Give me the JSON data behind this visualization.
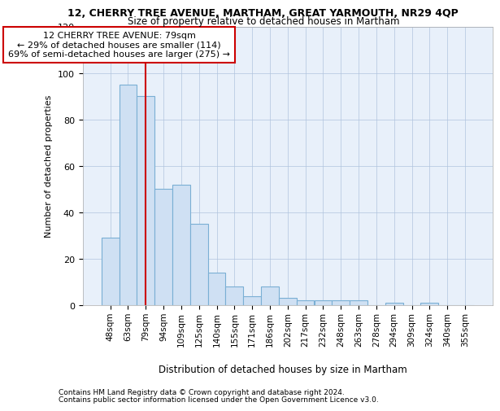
{
  "title": "12, CHERRY TREE AVENUE, MARTHAM, GREAT YARMOUTH, NR29 4QP",
  "subtitle": "Size of property relative to detached houses in Martham",
  "xlabel_bottom": "Distribution of detached houses by size in Martham",
  "ylabel": "Number of detached properties",
  "footer_line1": "Contains HM Land Registry data © Crown copyright and database right 2024.",
  "footer_line2": "Contains public sector information licensed under the Open Government Licence v3.0.",
  "annotation_line1": "12 CHERRY TREE AVENUE: 79sqm",
  "annotation_line2": "← 29% of detached houses are smaller (114)",
  "annotation_line3": "69% of semi-detached houses are larger (275) →",
  "bar_labels": [
    "48sqm",
    "63sqm",
    "79sqm",
    "94sqm",
    "109sqm",
    "125sqm",
    "140sqm",
    "155sqm",
    "171sqm",
    "186sqm",
    "202sqm",
    "217sqm",
    "232sqm",
    "248sqm",
    "263sqm",
    "278sqm",
    "294sqm",
    "309sqm",
    "324sqm",
    "340sqm",
    "355sqm"
  ],
  "bar_values": [
    29,
    95,
    90,
    50,
    52,
    35,
    14,
    8,
    4,
    8,
    3,
    2,
    2,
    2,
    2,
    0,
    1,
    0,
    1,
    0,
    0
  ],
  "bar_color": "#cfe0f3",
  "bar_edge_color": "#7aafd4",
  "highlight_index": 2,
  "highlight_line_color": "#cc0000",
  "annotation_box_edge_color": "#cc0000",
  "background_color": "#ffffff",
  "plot_bg_color": "#e8f0fa",
  "grid_color": "#b0c4de",
  "ylim": [
    0,
    120
  ],
  "yticks": [
    0,
    20,
    40,
    60,
    80,
    100,
    120
  ],
  "title_fontsize": 9,
  "subtitle_fontsize": 8.5,
  "ylabel_fontsize": 8,
  "tick_fontsize": 8,
  "xtick_fontsize": 7.5,
  "annotation_fontsize": 8,
  "footer_fontsize": 6.5
}
